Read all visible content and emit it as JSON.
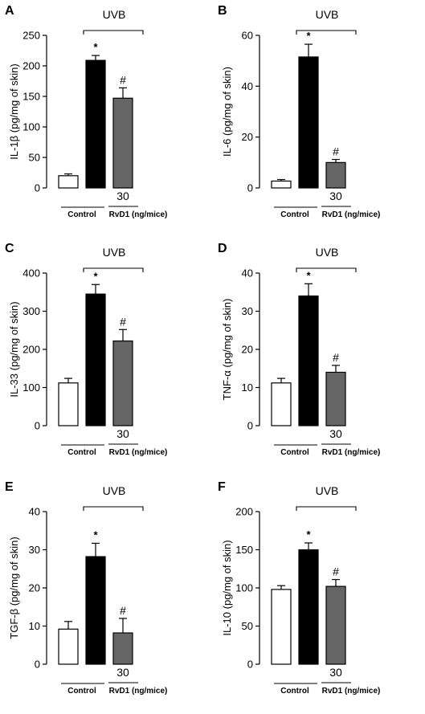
{
  "figure": {
    "uvb_label": "UVB",
    "control_label": "Control",
    "dose_label": "30",
    "treatment_label": "RvD1 (ng/mice)"
  },
  "chart_data": [
    {
      "panel": "A",
      "type": "bar",
      "ylabel": "IL-1β (pg/mg of skin)",
      "ylim": [
        0,
        250
      ],
      "yticks": [
        0,
        50,
        100,
        150,
        200,
        250
      ],
      "categories": [
        "Control",
        "UVB",
        "UVB + RvD1 30"
      ],
      "values": [
        20,
        209,
        147
      ],
      "errors": [
        3,
        8,
        17
      ],
      "marks": [
        "",
        "*",
        "#"
      ],
      "bar_colors": [
        "#ffffff",
        "#000000",
        "#666666"
      ]
    },
    {
      "panel": "B",
      "type": "bar",
      "ylabel": "IL-6 (pg/mg of skin)",
      "ylim": [
        0,
        60
      ],
      "yticks": [
        0,
        20,
        40,
        60
      ],
      "categories": [
        "Control",
        "UVB",
        "UVB + RvD1 30"
      ],
      "values": [
        2.7,
        51.5,
        10
      ],
      "errors": [
        0.6,
        5,
        1.2
      ],
      "marks": [
        "",
        "*",
        "#"
      ],
      "bar_colors": [
        "#ffffff",
        "#000000",
        "#666666"
      ]
    },
    {
      "panel": "C",
      "type": "bar",
      "ylabel": "IL-33 (pg/mg of skin)",
      "ylim": [
        0,
        400
      ],
      "yticks": [
        0,
        100,
        200,
        300,
        400
      ],
      "categories": [
        "Control",
        "UVB",
        "UVB + RvD1 30"
      ],
      "values": [
        112,
        345,
        222
      ],
      "errors": [
        12,
        25,
        30
      ],
      "marks": [
        "",
        "*",
        "#"
      ],
      "bar_colors": [
        "#ffffff",
        "#000000",
        "#666666"
      ]
    },
    {
      "panel": "D",
      "type": "bar",
      "ylabel": "TNF-α (pg/mg of skin)",
      "ylim": [
        0,
        40
      ],
      "yticks": [
        0,
        10,
        20,
        30,
        40
      ],
      "categories": [
        "Control",
        "UVB",
        "UVB + RvD1 30"
      ],
      "values": [
        11.2,
        34,
        14
      ],
      "errors": [
        1.2,
        3.2,
        1.8
      ],
      "marks": [
        "",
        "*",
        "#"
      ],
      "bar_colors": [
        "#ffffff",
        "#000000",
        "#666666"
      ]
    },
    {
      "panel": "E",
      "type": "bar",
      "ylabel": "TGF-β (pg/mg of skin)",
      "ylim": [
        0,
        40
      ],
      "yticks": [
        0,
        10,
        20,
        30,
        40
      ],
      "categories": [
        "Control",
        "UVB",
        "UVB + RvD1 30"
      ],
      "values": [
        9.2,
        28.2,
        8.2
      ],
      "errors": [
        2,
        3.5,
        3.8
      ],
      "marks": [
        "",
        "*",
        "#"
      ],
      "bar_colors": [
        "#ffffff",
        "#000000",
        "#666666"
      ]
    },
    {
      "panel": "F",
      "type": "bar",
      "ylabel": "IL-10 (pg/mg of skin)",
      "ylim": [
        0,
        200
      ],
      "yticks": [
        0,
        50,
        100,
        150,
        200
      ],
      "categories": [
        "Control",
        "UVB",
        "UVB + RvD1 30"
      ],
      "values": [
        98,
        150,
        102
      ],
      "errors": [
        5,
        9,
        9
      ],
      "marks": [
        "",
        "*",
        "#"
      ],
      "bar_colors": [
        "#ffffff",
        "#000000",
        "#666666"
      ]
    }
  ]
}
